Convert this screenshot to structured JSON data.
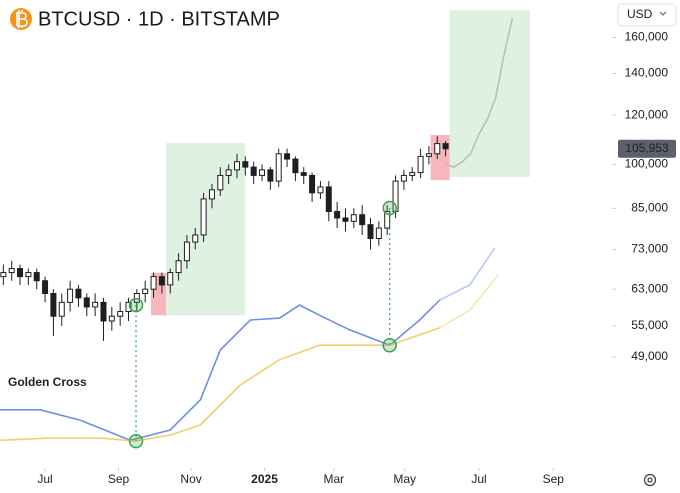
{
  "header": {
    "title": "BTCUSD · 1D · BITSTAMP",
    "currency": "USD"
  },
  "chart_data": {
    "type": "candlestick",
    "log_scale": true,
    "up_color": "#1f1f1f",
    "down_color": "#1f1f1f",
    "x": [
      -5,
      -4,
      -3,
      -2,
      -1,
      0,
      1,
      2,
      3,
      4,
      5,
      6,
      7,
      8,
      9,
      10,
      11,
      12,
      13,
      14,
      15,
      16,
      17,
      18,
      19,
      20,
      21,
      22,
      23,
      24,
      25,
      26,
      27,
      28,
      29,
      30,
      31,
      32,
      33,
      34,
      35,
      36,
      37,
      38,
      39,
      40,
      41,
      42,
      43,
      44,
      45,
      46,
      47,
      48
    ],
    "open": [
      66000,
      67000,
      68000,
      66000,
      67000,
      65000,
      62000,
      57000,
      60000,
      63000,
      61000,
      59000,
      60000,
      56000,
      57000,
      58000,
      60000,
      62000,
      63000,
      66000,
      64000,
      67000,
      70000,
      75000,
      77000,
      88000,
      91000,
      96000,
      98000,
      101000,
      99000,
      96000,
      98000,
      94000,
      104000,
      102000,
      97000,
      96000,
      90000,
      92000,
      84000,
      82000,
      81000,
      83000,
      80000,
      76000,
      79000,
      84000,
      94000,
      96000,
      97000,
      103000,
      104000,
      108000
    ],
    "high": [
      69000,
      70000,
      69000,
      68000,
      68000,
      66000,
      63000,
      62000,
      65000,
      64000,
      62000,
      62000,
      61000,
      59000,
      60000,
      61000,
      63000,
      65000,
      67000,
      67000,
      68000,
      72000,
      77000,
      79000,
      90000,
      93000,
      99000,
      100000,
      104000,
      103000,
      101000,
      100000,
      99000,
      106000,
      106000,
      103000,
      99000,
      97000,
      94000,
      94000,
      87000,
      85000,
      85000,
      86000,
      82000,
      81000,
      86000,
      96000,
      98000,
      99000,
      106000,
      107000,
      111000,
      109000
    ],
    "low": [
      64000,
      65000,
      64000,
      64000,
      63000,
      60000,
      53000,
      55000,
      58000,
      59000,
      57000,
      57000,
      52000,
      54000,
      55000,
      56000,
      58000,
      60000,
      61000,
      62000,
      62000,
      65000,
      68000,
      73000,
      75000,
      85000,
      89000,
      93000,
      95000,
      96000,
      93000,
      94000,
      91000,
      92000,
      99000,
      94000,
      93000,
      87000,
      88000,
      81000,
      79000,
      78000,
      79000,
      77000,
      73000,
      74000,
      77000,
      82000,
      91000,
      94000,
      95000,
      100000,
      102000,
      103000
    ],
    "close": [
      67000,
      68000,
      66000,
      67000,
      65000,
      62000,
      57000,
      60000,
      63000,
      61000,
      59000,
      60000,
      56000,
      57000,
      58000,
      60000,
      62000,
      63000,
      66000,
      64000,
      67000,
      70000,
      75000,
      77000,
      88000,
      91000,
      96000,
      98000,
      101000,
      99000,
      96000,
      98000,
      94000,
      104000,
      102000,
      97000,
      96000,
      90000,
      92000,
      84000,
      82000,
      81000,
      83000,
      80000,
      76000,
      79000,
      84000,
      94000,
      96000,
      97000,
      103000,
      104000,
      108000,
      105953
    ],
    "last_price": {
      "value": 105953,
      "label": "105,953"
    },
    "lines": [
      {
        "color": "#bdbdbd",
        "x": [
          48,
          49,
          50,
          51,
          52,
          53,
          54,
          55,
          56
        ],
        "values": [
          100000,
          99000,
          101000,
          104000,
          112000,
          118000,
          128000,
          150000,
          172000
        ]
      },
      {
        "color": "#6f8fe3",
        "x": [
          -5.4,
          -0.6,
          4.2,
          10.2,
          15,
          18.6,
          21,
          24.6,
          28.1,
          30.5,
          32.9,
          36.5,
          41.3,
          44.9,
          47.3
        ],
        "values": [
          40300,
          40300,
          38800,
          36000,
          37400,
          41800,
          50300,
          56200,
          56600,
          59400,
          57200,
          54200,
          51200,
          56200,
          60500
        ]
      },
      {
        "color": "#bccaf2",
        "x": [
          47.3,
          50.9,
          53.9
        ],
        "values": [
          60500,
          64000,
          73400
        ]
      },
      {
        "color": "#f3cf6b",
        "x": [
          -5.4,
          0.6,
          6.6,
          10.8,
          15,
          18.6,
          23.4,
          28.1,
          32.9,
          41.3,
          44.9,
          47.3
        ],
        "values": [
          36000,
          36300,
          36300,
          35900,
          36700,
          38100,
          44200,
          48500,
          51200,
          51200,
          53200,
          54600
        ]
      },
      {
        "color": "#f8e6b2",
        "x": [
          47.3,
          50.9,
          54.3
        ],
        "values": [
          54600,
          58300,
          66400
        ]
      }
    ],
    "zones": [
      {
        "color": "#d9f0dc",
        "x": [
          14.5,
          24.0
        ],
        "y": [
          57200,
          108300
        ]
      },
      {
        "color": "#f4a9b0",
        "x": [
          12.7,
          14.5
        ],
        "y": [
          57200,
          66900
        ]
      },
      {
        "color": "#f4a9b0",
        "x": [
          46.2,
          48.5
        ],
        "y": [
          94400,
          111500
        ]
      },
      {
        "color": "#d9f0dc",
        "x": [
          48.5,
          58.1
        ],
        "y": [
          95400,
          177000
        ]
      }
    ],
    "markers": [
      {
        "x": 10.9,
        "y": 59400
      },
      {
        "x": 10.9,
        "y": 35900
      },
      {
        "x": 41.3,
        "y": 85100
      },
      {
        "x": 41.3,
        "y": 51200
      }
    ],
    "marker_color": "#3fa34d",
    "annotation": "Golden Cross",
    "xlim": [
      -5.4,
      67.7
    ],
    "ylim": [
      33470,
      183800
    ],
    "xticks": [
      {
        "value": 0,
        "label": "Jul"
      },
      {
        "value": 8.8,
        "label": "Sep"
      },
      {
        "value": 17.5,
        "label": "Nov"
      },
      {
        "value": 26.3,
        "label": "2025"
      },
      {
        "value": 34.6,
        "label": "Mar"
      },
      {
        "value": 43.1,
        "label": "May"
      },
      {
        "value": 52,
        "label": "Jul"
      },
      {
        "value": 60.9,
        "label": "Sep"
      }
    ],
    "yticks": [
      {
        "value": 49000,
        "label": "49,000"
      },
      {
        "value": 55000,
        "label": "55,000"
      },
      {
        "value": 63000,
        "label": "63,000"
      },
      {
        "value": 73000,
        "label": "73,000"
      },
      {
        "value": 85000,
        "label": "85,000"
      },
      {
        "value": 100000,
        "label": "100,000"
      },
      {
        "value": 120000,
        "label": "120,000"
      },
      {
        "value": 140000,
        "label": "140,000"
      },
      {
        "value": 160000,
        "label": "160,000"
      }
    ]
  }
}
